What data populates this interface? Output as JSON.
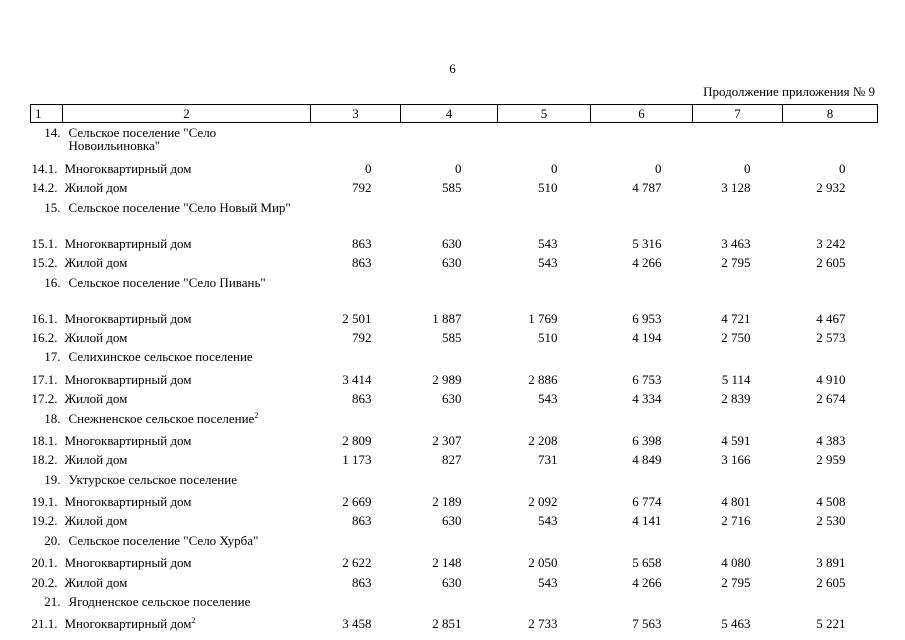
{
  "page_number": "6",
  "continuation": "Продолжение приложения № 9",
  "header": [
    "1",
    "2",
    "3",
    "4",
    "5",
    "6",
    "7",
    "8"
  ],
  "rows": [
    {
      "type": "section",
      "num": "14.",
      "label": "Сельское поселение \"Село Новоильиновка\"",
      "lines": 2
    },
    {
      "type": "row",
      "num": "14.1.",
      "label": "Многоквартирный дом",
      "sup": "",
      "values": [
        "0",
        "0",
        "0",
        "0",
        "0",
        "0"
      ]
    },
    {
      "type": "row",
      "num": "14.2.",
      "label": "Жилой дом",
      "sup": "",
      "values": [
        "792",
        "585",
        "510",
        "4 787",
        "3 128",
        "2 932"
      ]
    },
    {
      "type": "section",
      "num": "15.",
      "label": "Сельское поселение \"Село Новый Мир\"",
      "lines": 2
    },
    {
      "type": "row",
      "num": "15.1.",
      "label": "Многоквартирный дом",
      "sup": "",
      "values": [
        "863",
        "630",
        "543",
        "5 316",
        "3 463",
        "3 242"
      ]
    },
    {
      "type": "row",
      "num": "15.2.",
      "label": "Жилой дом",
      "sup": "",
      "values": [
        "863",
        "630",
        "543",
        "4 266",
        "2 795",
        "2 605"
      ]
    },
    {
      "type": "section",
      "num": "16.",
      "label": "Сельское поселение \"Село Пивань\"",
      "lines": 2
    },
    {
      "type": "row",
      "num": "16.1.",
      "label": "Многоквартирный дом",
      "sup": "",
      "values": [
        "2 501",
        "1 887",
        "1 769",
        "6 953",
        "4 721",
        "4 467"
      ]
    },
    {
      "type": "row",
      "num": "16.2.",
      "label": "Жилой дом",
      "sup": "",
      "values": [
        "792",
        "585",
        "510",
        "4 194",
        "2 750",
        "2 573"
      ]
    },
    {
      "type": "section",
      "num": "17.",
      "label": "Селихинское сельское поселение",
      "lines": 1
    },
    {
      "type": "row",
      "num": "17.1.",
      "label": "Многоквартирный дом",
      "sup": "",
      "values": [
        "3 414",
        "2 989",
        "2 886",
        "6 753",
        "5 114",
        "4 910"
      ]
    },
    {
      "type": "row",
      "num": "17.2.",
      "label": "Жилой дом",
      "sup": "",
      "values": [
        "863",
        "630",
        "543",
        "4 334",
        "2 839",
        "2 674"
      ]
    },
    {
      "type": "section",
      "num": "18.",
      "label": "Снежненское сельское поселение",
      "sup": "2",
      "lines": 1
    },
    {
      "type": "row",
      "num": "18.1.",
      "label": "Многоквартирный дом",
      "sup": "",
      "values": [
        "2 809",
        "2 307",
        "2 208",
        "6 398",
        "4 591",
        "4 383"
      ]
    },
    {
      "type": "row",
      "num": "18.2.",
      "label": "Жилой дом",
      "sup": "",
      "values": [
        "1 173",
        "827",
        "731",
        "4 849",
        "3 166",
        "2 959"
      ]
    },
    {
      "type": "section",
      "num": "19.",
      "label": "Уктурское сельское поселение",
      "lines": 1
    },
    {
      "type": "row",
      "num": "19.1.",
      "label": "Многоквартирный дом",
      "sup": "",
      "values": [
        "2 669",
        "2 189",
        "2 092",
        "6 774",
        "4 801",
        "4 508"
      ]
    },
    {
      "type": "row",
      "num": "19.2.",
      "label": "Жилой дом",
      "sup": "",
      "values": [
        "863",
        "630",
        "543",
        "4 141",
        "2 716",
        "2 530"
      ]
    },
    {
      "type": "section",
      "num": "20.",
      "label": "Сельское поселение \"Село Хурба\"",
      "lines": 1
    },
    {
      "type": "row",
      "num": "20.1.",
      "label": "Многоквартирный дом",
      "sup": "",
      "values": [
        "2 622",
        "2 148",
        "2 050",
        "5 658",
        "4 080",
        "3 891"
      ]
    },
    {
      "type": "row",
      "num": "20.2.",
      "label": "Жилой дом",
      "sup": "",
      "values": [
        "863",
        "630",
        "543",
        "4 266",
        "2 795",
        "2 605"
      ]
    },
    {
      "type": "section",
      "num": "21.",
      "label": "Ягодненское сельское поселение",
      "lines": 1
    },
    {
      "type": "row",
      "num": "21.1.",
      "label": "Многоквартирный дом",
      "sup": "2",
      "values": [
        "3 458",
        "2 851",
        "2 733",
        "7 563",
        "5 463",
        "5 221"
      ]
    }
  ]
}
